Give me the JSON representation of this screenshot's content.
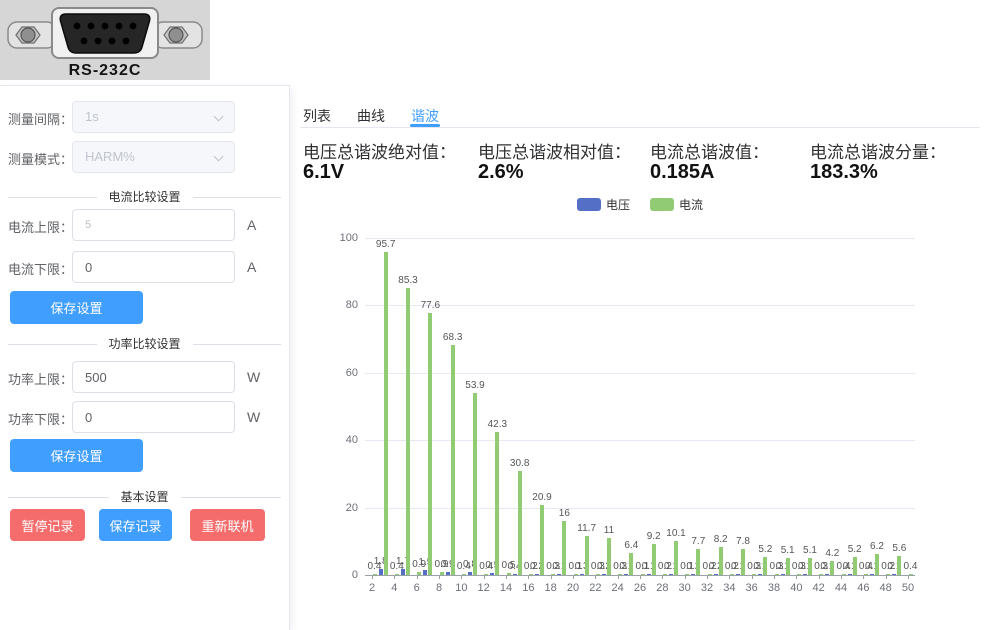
{
  "connector": {
    "label": "RS-232C"
  },
  "sidebar": {
    "interval_label": "测量间隔：",
    "interval_value": "1s",
    "mode_label": "测量模式：",
    "mode_value": "HARM%",
    "current_section_title": "电流比较设置",
    "current_upper_label": "电流上限：",
    "current_upper_value": "5",
    "current_upper_unit": "A",
    "current_lower_label": "电流下限：",
    "current_lower_value": "0",
    "current_lower_unit": "A",
    "save_settings_label": "保存设置",
    "power_section_title": "功率比较设置",
    "power_upper_label": "功率上限：",
    "power_upper_value": "500",
    "power_upper_unit": "W",
    "power_lower_label": "功率下限：",
    "power_lower_value": "0",
    "power_lower_unit": "W",
    "basic_section_title": "基本设置",
    "pause_record_label": "暂停记录",
    "save_record_label": "保存记录",
    "reconnect_label": "重新联机"
  },
  "tabs": [
    {
      "label": "列表",
      "active": false
    },
    {
      "label": "曲线",
      "active": false
    },
    {
      "label": "谐波",
      "active": true
    }
  ],
  "stats": [
    {
      "label": "电压总谐波绝对值：",
      "value": "6.1V"
    },
    {
      "label": "电压总谐波相对值：",
      "value": "2.6%"
    },
    {
      "label": "电流总谐波值：",
      "value": "0.185A"
    },
    {
      "label": "电流总谐波分量：",
      "value": "183.3%"
    }
  ],
  "colors": {
    "primary": "#409eff",
    "danger": "#f56c6c",
    "voltage": "#5470c6",
    "current": "#91cc75"
  },
  "chart_data": {
    "type": "bar",
    "title": "",
    "xlabel": "",
    "ylabel": "",
    "x": [
      2,
      3,
      4,
      5,
      6,
      7,
      8,
      9,
      10,
      11,
      12,
      13,
      14,
      15,
      16,
      17,
      18,
      19,
      20,
      21,
      22,
      23,
      24,
      25,
      26,
      27,
      28,
      29,
      30,
      31,
      32,
      33,
      34,
      35,
      36,
      37,
      38,
      39,
      40,
      41,
      42,
      43,
      44,
      45,
      46,
      47,
      48,
      49,
      50
    ],
    "series": [
      {
        "name": "电压",
        "color": "#5470c6",
        "values": [
          0,
          1.8,
          0,
          1.7,
          0,
          1.5,
          0,
          0.9,
          0,
          0.8,
          0,
          0.5,
          0,
          0.4,
          0,
          0.2,
          0,
          0.1,
          0,
          0.3,
          0,
          0.2,
          0,
          0.1,
          0,
          0.1,
          0,
          0.1,
          0,
          0.2,
          0,
          0.2,
          0,
          0.1,
          0,
          0.1,
          0,
          0.1,
          0,
          0.1,
          0,
          0.1,
          0,
          0.1,
          0,
          0.1,
          0,
          0.1,
          0
        ]
      },
      {
        "name": "电流",
        "color": "#91cc75",
        "values": [
          0.4,
          95.7,
          0.4,
          85.3,
          0.9,
          77.6,
          0.9,
          68.3,
          0.4,
          53.9,
          0.4,
          42.3,
          0.5,
          30.8,
          0.2,
          20.9,
          0.3,
          16,
          0.1,
          11.7,
          0.3,
          11,
          0.3,
          6.4,
          0.1,
          9.2,
          0.2,
          10.1,
          0.1,
          7.7,
          0.2,
          8.2,
          0.2,
          7.8,
          0.3,
          5.2,
          0.3,
          5.1,
          0.3,
          5.1,
          0.3,
          4.2,
          0.4,
          5.2,
          0.4,
          6.2,
          0.2,
          5.6,
          0.4
        ]
      }
    ],
    "ylim": [
      0,
      100
    ],
    "yticks": [
      0,
      20,
      40,
      60,
      80,
      100
    ],
    "xticks": [
      2,
      4,
      6,
      8,
      10,
      12,
      14,
      16,
      18,
      20,
      22,
      24,
      26,
      28,
      30,
      32,
      34,
      36,
      38,
      40,
      42,
      44,
      46,
      48,
      50
    ],
    "grid": true,
    "legend_position": "top-center"
  }
}
